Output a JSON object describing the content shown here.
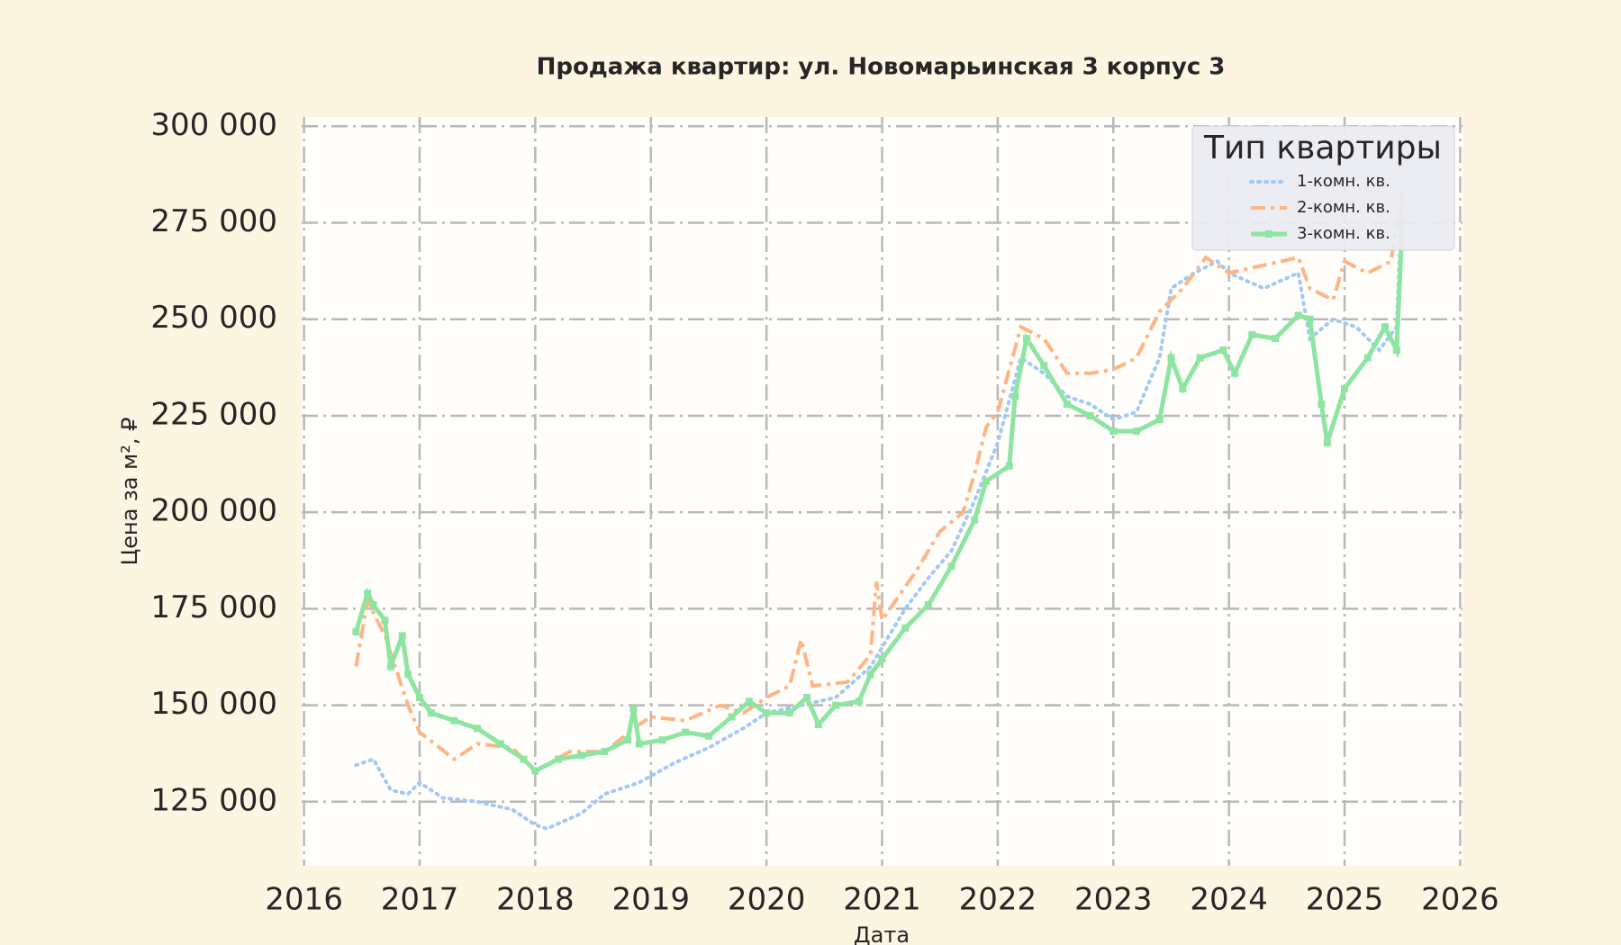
{
  "chart_data": {
    "type": "line",
    "title": "Продажа квартир: ул. Новомарьинская 3 корпус 3",
    "x_label": "Дата",
    "y_label": "Цена за м², ₽",
    "legend_title": "Тип квартиры",
    "legend_position": "upper right",
    "grid": true,
    "xlim": [
      2015.98,
      2026.02
    ],
    "xticks": [
      2016,
      2017,
      2018,
      2019,
      2020,
      2021,
      2022,
      2023,
      2024,
      2025,
      2026
    ],
    "ylim": [
      108400,
      302400
    ],
    "yticks": [
      {
        "value": 125000,
        "label": "125 000"
      },
      {
        "value": 150000,
        "label": "150 000"
      },
      {
        "value": 175000,
        "label": "175 000"
      },
      {
        "value": 200000,
        "label": "200 000"
      },
      {
        "value": 225000,
        "label": "225 000"
      },
      {
        "value": 250000,
        "label": "250 000"
      },
      {
        "value": 275000,
        "label": "275 000"
      },
      {
        "value": 300000,
        "label": "300 000"
      }
    ],
    "series": [
      {
        "name": "1-комн. кв.",
        "color": "#a1c9f4",
        "style": "dotted",
        "x": [
          2016.45,
          2016.6,
          2016.75,
          2016.9,
          2017.0,
          2017.2,
          2017.5,
          2017.8,
          2018.0,
          2018.1,
          2018.4,
          2018.6,
          2018.9,
          2019.2,
          2019.5,
          2019.8,
          2020.0,
          2020.3,
          2020.6,
          2020.9,
          2021.0,
          2021.2,
          2021.4,
          2021.6,
          2021.8,
          2022.0,
          2022.2,
          2022.4,
          2022.6,
          2022.8,
          2023.0,
          2023.2,
          2023.4,
          2023.5,
          2023.7,
          2023.9,
          2024.0,
          2024.3,
          2024.6,
          2024.7,
          2024.9,
          2025.1,
          2025.3,
          2025.45,
          2025.5
        ],
        "values": [
          134500,
          136000,
          128000,
          127000,
          130000,
          126000,
          125000,
          123000,
          119000,
          118000,
          122000,
          127000,
          130000,
          135000,
          139000,
          144000,
          148000,
          150000,
          152000,
          160000,
          165000,
          175000,
          183000,
          190000,
          203000,
          218000,
          240000,
          236000,
          230000,
          228000,
          224000,
          226000,
          240000,
          258000,
          262000,
          265000,
          262000,
          258000,
          262000,
          245000,
          250000,
          248000,
          242000,
          248000,
          283000
        ]
      },
      {
        "name": "2-комн. кв.",
        "color": "#ffb482",
        "style": "dashdot",
        "x": [
          2016.45,
          2016.55,
          2016.7,
          2016.9,
          2017.0,
          2017.3,
          2017.5,
          2017.8,
          2018.0,
          2018.3,
          2018.6,
          2018.9,
          2019.0,
          2019.3,
          2019.6,
          2019.8,
          2020.0,
          2020.2,
          2020.3,
          2020.4,
          2020.7,
          2020.9,
          2020.95,
          2021.0,
          2021.3,
          2021.5,
          2021.7,
          2021.8,
          2021.9,
          2022.0,
          2022.2,
          2022.4,
          2022.6,
          2022.8,
          2023.0,
          2023.2,
          2023.4,
          2023.6,
          2023.8,
          2024.0,
          2024.3,
          2024.6,
          2024.7,
          2024.9,
          2025.0,
          2025.2,
          2025.4,
          2025.5
        ],
        "values": [
          160000,
          177000,
          168000,
          150000,
          143000,
          136000,
          140000,
          139000,
          133000,
          138000,
          138000,
          145000,
          147000,
          146000,
          150000,
          148000,
          152000,
          155000,
          167000,
          155000,
          156000,
          163000,
          182000,
          172000,
          185000,
          195000,
          200000,
          210000,
          222000,
          226000,
          248000,
          245000,
          236000,
          236000,
          237000,
          240000,
          252000,
          258000,
          266000,
          262000,
          264000,
          266000,
          258000,
          255000,
          265000,
          262000,
          265000,
          283000
        ]
      },
      {
        "name": "3-комн. кв.",
        "color": "#8de5a1",
        "style": "solid",
        "marker": "square",
        "x": [
          2016.45,
          2016.55,
          2016.6,
          2016.7,
          2016.75,
          2016.85,
          2016.9,
          2017.0,
          2017.1,
          2017.3,
          2017.5,
          2017.7,
          2017.9,
          2018.0,
          2018.2,
          2018.4,
          2018.6,
          2018.8,
          2018.85,
          2018.9,
          2019.1,
          2019.3,
          2019.5,
          2019.7,
          2019.85,
          2020.0,
          2020.2,
          2020.35,
          2020.45,
          2020.6,
          2020.8,
          2020.9,
          2021.0,
          2021.2,
          2021.4,
          2021.6,
          2021.8,
          2021.9,
          2022.1,
          2022.15,
          2022.25,
          2022.4,
          2022.6,
          2022.8,
          2023.0,
          2023.2,
          2023.4,
          2023.5,
          2023.6,
          2023.75,
          2023.95,
          2024.05,
          2024.2,
          2024.4,
          2024.6,
          2024.7,
          2024.8,
          2024.85,
          2025.0,
          2025.2,
          2025.35,
          2025.45,
          2025.5
        ],
        "values": [
          169000,
          179000,
          176000,
          172000,
          160000,
          168000,
          158000,
          152000,
          148000,
          146000,
          144000,
          140000,
          136000,
          133000,
          136000,
          137000,
          138000,
          141000,
          149000,
          140000,
          141000,
          143000,
          142000,
          147000,
          151000,
          148000,
          148000,
          152000,
          145000,
          150000,
          151000,
          158000,
          162000,
          170000,
          176000,
          186000,
          198000,
          208000,
          212000,
          230000,
          245000,
          238000,
          228000,
          225000,
          221000,
          221000,
          224000,
          240000,
          232000,
          240000,
          242000,
          236000,
          246000,
          245000,
          251000,
          250000,
          228000,
          218000,
          232000,
          240000,
          248000,
          242000,
          275000
        ]
      }
    ]
  }
}
